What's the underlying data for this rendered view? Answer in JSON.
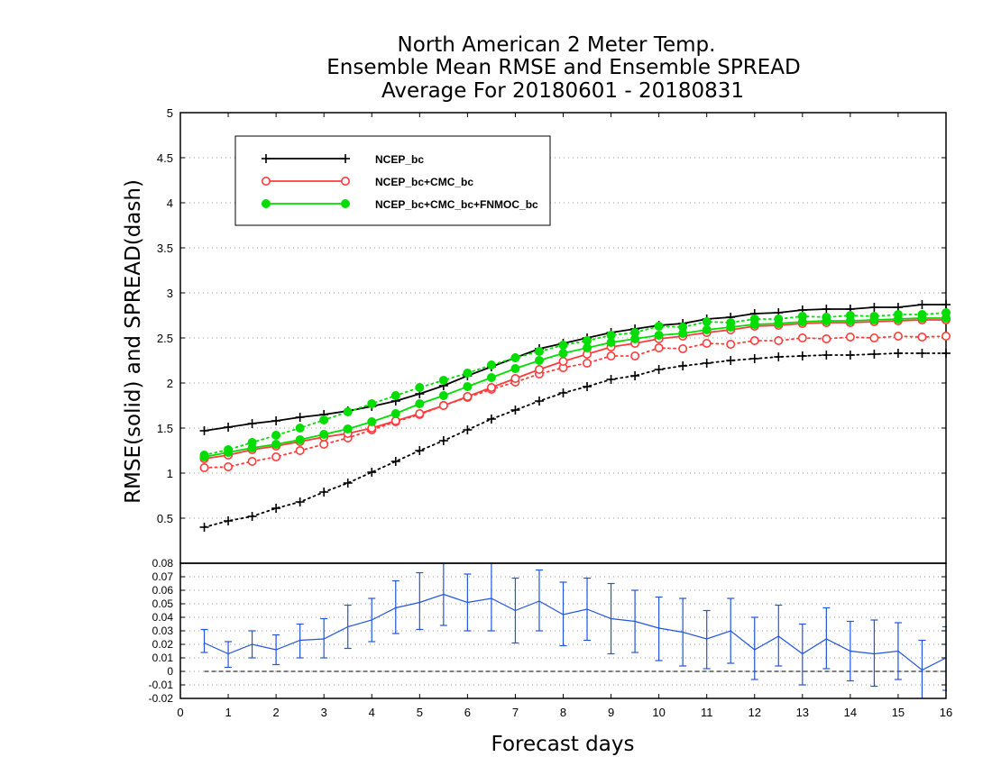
{
  "chart_data": [
    {
      "type": "line",
      "title": [
        "North American 2 Meter Temp.",
        "Ensemble Mean RMSE and Ensemble SPREAD",
        "Average For 20180601 - 20180831"
      ],
      "xlabel": "Forecast days",
      "ylabel": "RMSE(solid) and SPREAD(dash)",
      "xlim": [
        0,
        16
      ],
      "ylim": [
        0,
        5
      ],
      "yticks": [
        "0.5",
        "1",
        "1.5",
        "2",
        "2.5",
        "3",
        "3.5",
        "4",
        "4.5",
        "5"
      ],
      "grid": true,
      "legend_position": "top-left",
      "x": [
        0.5,
        1,
        1.5,
        2,
        2.5,
        3,
        3.5,
        4,
        4.5,
        5,
        5.5,
        6,
        6.5,
        7,
        7.5,
        8,
        8.5,
        9,
        9.5,
        10,
        10.5,
        11,
        11.5,
        12,
        12.5,
        13,
        13.5,
        14,
        14.5,
        15,
        15.5,
        16
      ],
      "series": [
        {
          "name": "NCEP_bc",
          "color": "#000000",
          "marker": "plus",
          "rmse": [
            1.47,
            1.51,
            1.55,
            1.58,
            1.62,
            1.65,
            1.69,
            1.74,
            1.8,
            1.88,
            1.97,
            2.08,
            2.18,
            2.28,
            2.38,
            2.44,
            2.5,
            2.56,
            2.6,
            2.64,
            2.66,
            2.71,
            2.73,
            2.77,
            2.78,
            2.81,
            2.82,
            2.82,
            2.84,
            2.84,
            2.87,
            2.87
          ],
          "spread": [
            0.4,
            0.47,
            0.52,
            0.61,
            0.68,
            0.79,
            0.89,
            1.01,
            1.13,
            1.25,
            1.36,
            1.48,
            1.6,
            1.7,
            1.8,
            1.89,
            1.96,
            2.04,
            2.08,
            2.15,
            2.19,
            2.22,
            2.25,
            2.27,
            2.29,
            2.3,
            2.31,
            2.31,
            2.32,
            2.33,
            2.33,
            2.33
          ]
        },
        {
          "name": "NCEP_bc+CMC_bc",
          "color": "#ff3b3b",
          "marker": "open-circle",
          "rmse": [
            1.16,
            1.2,
            1.26,
            1.3,
            1.35,
            1.4,
            1.44,
            1.5,
            1.58,
            1.66,
            1.75,
            1.85,
            1.95,
            2.05,
            2.15,
            2.24,
            2.32,
            2.4,
            2.44,
            2.49,
            2.52,
            2.56,
            2.59,
            2.63,
            2.64,
            2.66,
            2.67,
            2.67,
            2.68,
            2.69,
            2.7,
            2.7
          ],
          "spread": [
            1.06,
            1.07,
            1.13,
            1.18,
            1.25,
            1.32,
            1.39,
            1.48,
            1.57,
            1.65,
            1.75,
            1.84,
            1.93,
            2.01,
            2.1,
            2.17,
            2.22,
            2.3,
            2.3,
            2.39,
            2.38,
            2.44,
            2.43,
            2.47,
            2.47,
            2.5,
            2.49,
            2.51,
            2.5,
            2.52,
            2.51,
            2.52
          ]
        },
        {
          "name": "NCEP_bc+CMC_bc+FNMOC_bc",
          "color": "#00dd00",
          "marker": "filled-circle",
          "rmse": [
            1.18,
            1.23,
            1.28,
            1.32,
            1.37,
            1.43,
            1.49,
            1.57,
            1.66,
            1.77,
            1.86,
            1.96,
            2.06,
            2.16,
            2.25,
            2.33,
            2.39,
            2.45,
            2.49,
            2.53,
            2.55,
            2.59,
            2.62,
            2.65,
            2.66,
            2.68,
            2.69,
            2.69,
            2.7,
            2.71,
            2.72,
            2.72
          ],
          "spread": [
            1.2,
            1.26,
            1.34,
            1.42,
            1.5,
            1.59,
            1.68,
            1.77,
            1.86,
            1.95,
            2.03,
            2.11,
            2.2,
            2.28,
            2.35,
            2.42,
            2.47,
            2.53,
            2.56,
            2.63,
            2.62,
            2.68,
            2.67,
            2.71,
            2.71,
            2.74,
            2.73,
            2.75,
            2.74,
            2.76,
            2.76,
            2.78
          ]
        }
      ]
    },
    {
      "type": "line",
      "xlabel": "Forecast days",
      "xlim": [
        0,
        16
      ],
      "xticks": [
        "0",
        "1",
        "2",
        "3",
        "4",
        "5",
        "6",
        "7",
        "8",
        "9",
        "10",
        "11",
        "12",
        "13",
        "14",
        "15",
        "16"
      ],
      "ylim": [
        -0.02,
        0.08
      ],
      "yticks": [
        "-0.02",
        "-0.01",
        "0",
        "0.01",
        "0.02",
        "0.03",
        "0.04",
        "0.05",
        "0.06",
        "0.07",
        "0.08"
      ],
      "grid": true,
      "color": "#2255dd",
      "x": [
        0.5,
        1,
        1.5,
        2,
        2.5,
        3,
        3.5,
        4,
        4.5,
        5,
        5.5,
        6,
        6.5,
        7,
        7.5,
        8,
        8.5,
        9,
        9.5,
        10,
        10.5,
        11,
        11.5,
        12,
        12.5,
        13,
        13.5,
        14,
        14.5,
        15,
        15.5,
        16
      ],
      "values": [
        0.021,
        0.013,
        0.02,
        0.016,
        0.023,
        0.024,
        0.033,
        0.038,
        0.047,
        0.051,
        0.057,
        0.051,
        0.054,
        0.045,
        0.052,
        0.042,
        0.046,
        0.039,
        0.037,
        0.032,
        0.029,
        0.024,
        0.03,
        0.016,
        0.026,
        0.013,
        0.024,
        0.015,
        0.013,
        0.015,
        0.001,
        0.01
      ],
      "error_low": [
        0.014,
        0.003,
        0.01,
        0.005,
        0.01,
        0.01,
        0.017,
        0.022,
        0.028,
        0.031,
        0.034,
        0.03,
        0.03,
        0.021,
        0.03,
        0.019,
        0.023,
        0.013,
        0.014,
        0.008,
        0.004,
        0.002,
        0.006,
        -0.006,
        0.004,
        -0.01,
        0.002,
        -0.007,
        -0.011,
        -0.006,
        -0.021,
        -0.014
      ],
      "error_high": [
        0.031,
        0.022,
        0.03,
        0.027,
        0.035,
        0.039,
        0.049,
        0.054,
        0.067,
        0.073,
        0.08,
        0.072,
        0.081,
        0.069,
        0.075,
        0.066,
        0.069,
        0.065,
        0.06,
        0.055,
        0.054,
        0.045,
        0.054,
        0.04,
        0.049,
        0.035,
        0.047,
        0.037,
        0.038,
        0.036,
        0.023,
        0.033
      ],
      "reference_line": 0
    }
  ]
}
